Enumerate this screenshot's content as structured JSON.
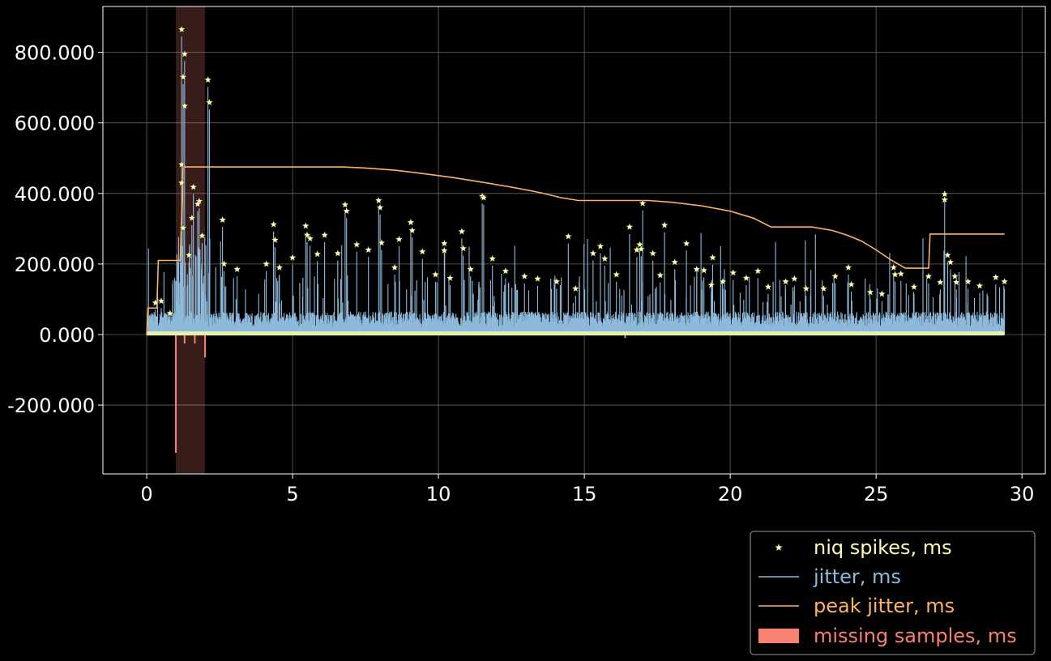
{
  "chart_data": {
    "type": "line",
    "title": "",
    "xlabel": "",
    "ylabel": "",
    "xlim": [
      -1.5,
      30.8
    ],
    "ylim": [
      -395,
      930
    ],
    "x_ticks": [
      0,
      5,
      10,
      15,
      20,
      25,
      30
    ],
    "x_tick_labels": [
      "0",
      "5",
      "10",
      "15",
      "20",
      "25",
      "30"
    ],
    "y_ticks": [
      -200,
      0,
      200,
      400,
      600,
      800
    ],
    "y_tick_labels": [
      "-200.000",
      "0.000",
      "200.000",
      "400.000",
      "600.000",
      "800.000"
    ],
    "grid": true,
    "legend_placement": "below-right",
    "legend": [
      {
        "label": "niq spikes, ms",
        "kind": "star-marker",
        "color": "#ffffb3"
      },
      {
        "label": "jitter, ms",
        "kind": "line",
        "color": "#8dbadb"
      },
      {
        "label": "peak jitter, ms",
        "kind": "line",
        "color": "#fdb462"
      },
      {
        "label": "missing samples, ms",
        "kind": "patch",
        "color": "#fa8072"
      }
    ],
    "shaded_region": {
      "x": [
        1.0,
        2.0
      ],
      "color": "#fa8072",
      "opacity": 0.22
    },
    "series": [
      {
        "name": "peak jitter, ms",
        "color": "#fdb462",
        "x": [
          0,
          0.05,
          0.35,
          0.4,
          1.15,
          1.25,
          2.5,
          5,
          6.7,
          7.5,
          8.5,
          9.5,
          10.5,
          11.5,
          12.5,
          13.5,
          14.2,
          14.8,
          15.5,
          16.5,
          17.2,
          18,
          19,
          20,
          20.8,
          21.4,
          22,
          22.8,
          23.5,
          24,
          24.5,
          25,
          25.5,
          26,
          26.4,
          26.8,
          26.85,
          27.5,
          29.4
        ],
        "values": [
          0,
          75,
          75,
          210,
          210,
          475,
          475,
          475,
          475,
          472,
          466,
          456,
          445,
          432,
          418,
          402,
          388,
          380,
          380,
          380,
          380,
          375,
          365,
          350,
          330,
          305,
          305,
          305,
          295,
          282,
          265,
          240,
          212,
          188,
          188,
          188,
          285,
          285,
          285
        ]
      },
      {
        "name": "missing samples, ms",
        "color": "#fa8072",
        "x": [
          1.0,
          1.3,
          1.65,
          2.0,
          16.4
        ],
        "values": [
          -335,
          -25,
          -25,
          -65,
          -10
        ]
      },
      {
        "name": "niq spikes, ms",
        "color": "#ffffb3",
        "x": [
          1.2,
          1.3,
          1.25,
          1.3,
          1.2,
          2.1,
          2.15,
          1.2,
          1.25,
          1.6,
          1.8,
          1.75,
          1.55,
          1.9,
          2.6,
          1.45,
          2.65,
          3.1,
          4.1,
          4.35,
          4.4,
          4.55,
          5.0,
          5.45,
          5.5,
          5.6,
          5.85,
          6.1,
          6.55,
          6.8,
          6.85,
          7.2,
          7.6,
          7.95,
          8.0,
          8.05,
          8.5,
          8.65,
          9.05,
          9.1,
          9.45,
          9.9,
          10.2,
          10.2,
          10.4,
          10.8,
          10.85,
          11.1,
          11.5,
          11.55,
          11.85,
          12.3,
          12.95,
          13.4,
          14.05,
          14.45,
          14.7,
          15.3,
          15.55,
          15.7,
          16.1,
          16.55,
          16.8,
          16.9,
          16.95,
          17.0,
          17.35,
          17.6,
          17.75,
          18.1,
          18.5,
          18.85,
          19.1,
          19.35,
          19.4,
          19.75,
          20.1,
          20.55,
          20.95,
          21.3,
          21.9,
          22.2,
          22.6,
          23.2,
          23.6,
          24.05,
          24.15,
          24.8,
          25.2,
          25.6,
          25.65,
          25.85,
          26.3,
          26.8,
          27.2,
          27.35,
          27.35,
          27.45,
          27.55,
          27.75,
          27.7,
          28.15,
          28.55,
          29.1,
          29.4,
          0.3,
          0.5,
          0.8
        ],
        "values": [
          865,
          795,
          730,
          648,
          482,
          722,
          658,
          430,
          302,
          418,
          378,
          370,
          330,
          280,
          325,
          225,
          200,
          185,
          200,
          312,
          268,
          190,
          218,
          308,
          282,
          272,
          228,
          282,
          230,
          368,
          350,
          255,
          240,
          380,
          360,
          260,
          190,
          270,
          318,
          295,
          235,
          170,
          258,
          238,
          160,
          292,
          244,
          185,
          392,
          388,
          215,
          180,
          165,
          158,
          150,
          278,
          130,
          230,
          250,
          215,
          170,
          305,
          240,
          255,
          242,
          372,
          230,
          168,
          310,
          205,
          258,
          185,
          182,
          140,
          218,
          150,
          175,
          160,
          180,
          135,
          150,
          158,
          130,
          130,
          165,
          190,
          142,
          120,
          115,
          190,
          170,
          172,
          135,
          165,
          148,
          398,
          382,
          225,
          205,
          148,
          165,
          150,
          138,
          162,
          150,
          90,
          95,
          60
        ]
      },
      {
        "name": "jitter, ms",
        "color": "#8dbadb",
        "x": [],
        "values": []
      }
    ]
  }
}
